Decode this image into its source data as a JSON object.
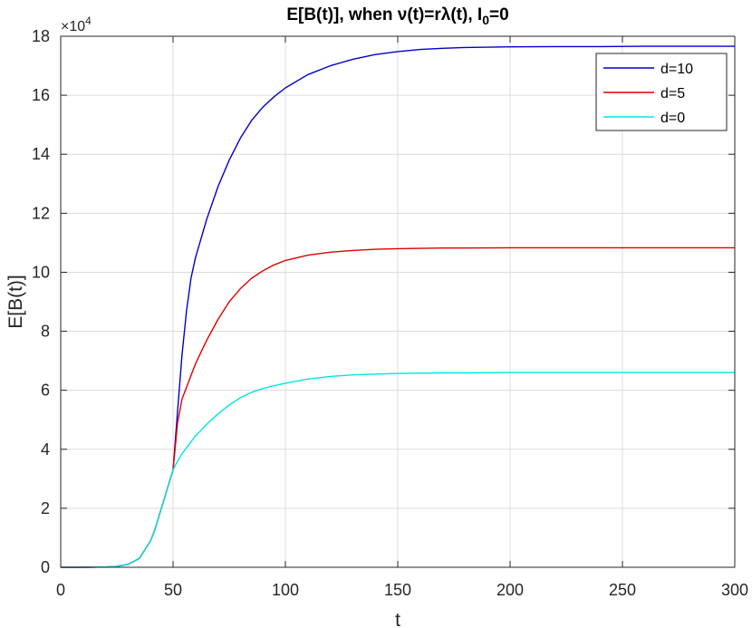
{
  "chart_data": {
    "type": "line",
    "title": "E[B(t)], when ν(t)=rλ(t), I",
    "title_subscript": "0",
    "title_suffix": "=0",
    "xlabel": "t",
    "ylabel": "E[B(t)]",
    "y_exponent_label": "×10",
    "y_exponent": "4",
    "xlim": [
      0,
      300
    ],
    "ylim": [
      0,
      18
    ],
    "x_ticks": [
      0,
      50,
      100,
      150,
      200,
      250,
      300
    ],
    "y_ticks": [
      0,
      2,
      4,
      6,
      8,
      10,
      12,
      14,
      16,
      18
    ],
    "grid": true,
    "legend_position": "top-right",
    "x": [
      0,
      10,
      20,
      25,
      30,
      35,
      40,
      42,
      44,
      46,
      48,
      50,
      52,
      54,
      56,
      58,
      60,
      65,
      70,
      75,
      80,
      85,
      90,
      95,
      100,
      110,
      120,
      130,
      140,
      150,
      160,
      170,
      180,
      200,
      220,
      240,
      260,
      280,
      300
    ],
    "series": [
      {
        "name": "d=10",
        "color": "#0000cc",
        "values": [
          0,
          0,
          0.01,
          0.03,
          0.1,
          0.3,
          0.9,
          1.3,
          1.8,
          2.3,
          2.8,
          3.3,
          5.3,
          7.2,
          8.7,
          9.8,
          10.5,
          11.8,
          12.9,
          13.8,
          14.55,
          15.15,
          15.6,
          15.95,
          16.25,
          16.7,
          17.0,
          17.22,
          17.38,
          17.48,
          17.55,
          17.59,
          17.62,
          17.64,
          17.65,
          17.65,
          17.66,
          17.66,
          17.66
        ]
      },
      {
        "name": "d=5",
        "color": "#dd0000",
        "values": [
          0,
          0,
          0.01,
          0.03,
          0.1,
          0.3,
          0.9,
          1.3,
          1.8,
          2.3,
          2.8,
          3.3,
          4.9,
          5.7,
          6.1,
          6.5,
          6.9,
          7.7,
          8.4,
          9.0,
          9.45,
          9.8,
          10.05,
          10.25,
          10.4,
          10.58,
          10.68,
          10.74,
          10.78,
          10.8,
          10.81,
          10.82,
          10.82,
          10.83,
          10.83,
          10.83,
          10.83,
          10.83,
          10.83
        ]
      },
      {
        "name": "d=0",
        "color": "#00e5e5",
        "values": [
          0,
          0,
          0.01,
          0.03,
          0.1,
          0.3,
          0.9,
          1.3,
          1.8,
          2.3,
          2.8,
          3.3,
          3.6,
          3.85,
          4.05,
          4.25,
          4.45,
          4.85,
          5.2,
          5.5,
          5.75,
          5.93,
          6.06,
          6.16,
          6.24,
          6.38,
          6.47,
          6.52,
          6.55,
          6.57,
          6.58,
          6.59,
          6.59,
          6.6,
          6.6,
          6.6,
          6.6,
          6.6,
          6.6
        ]
      }
    ]
  }
}
